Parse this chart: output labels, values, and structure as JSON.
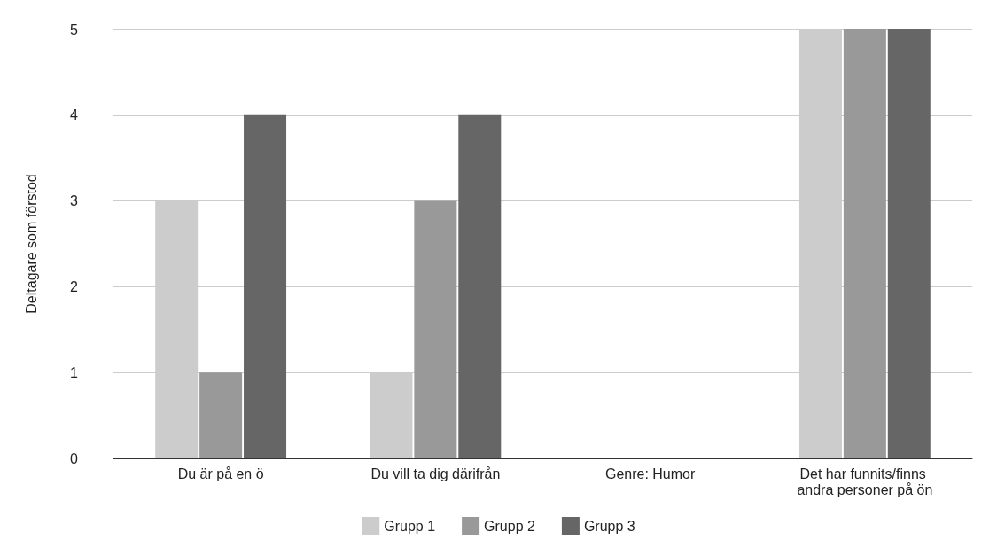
{
  "chart_data": {
    "type": "bar",
    "ylabel": "Deltagare som förstod",
    "categories": [
      "Du är på en ö",
      "Du vill ta dig därifrån",
      "Genre: Humor",
      "Det har funnits/finns andra personer på ön"
    ],
    "series": [
      {
        "name": "Grupp 1",
        "color": "#cccccc",
        "values": [
          3,
          1,
          0,
          5
        ]
      },
      {
        "name": "Grupp 2",
        "color": "#999999",
        "values": [
          1,
          3,
          0,
          5
        ]
      },
      {
        "name": "Grupp 3",
        "color": "#666666",
        "values": [
          4,
          4,
          0,
          5
        ]
      }
    ],
    "ylim": [
      0,
      5
    ],
    "yticks": [
      0,
      1,
      2,
      3,
      4,
      5
    ],
    "grid": "y",
    "legend": "bottom"
  }
}
